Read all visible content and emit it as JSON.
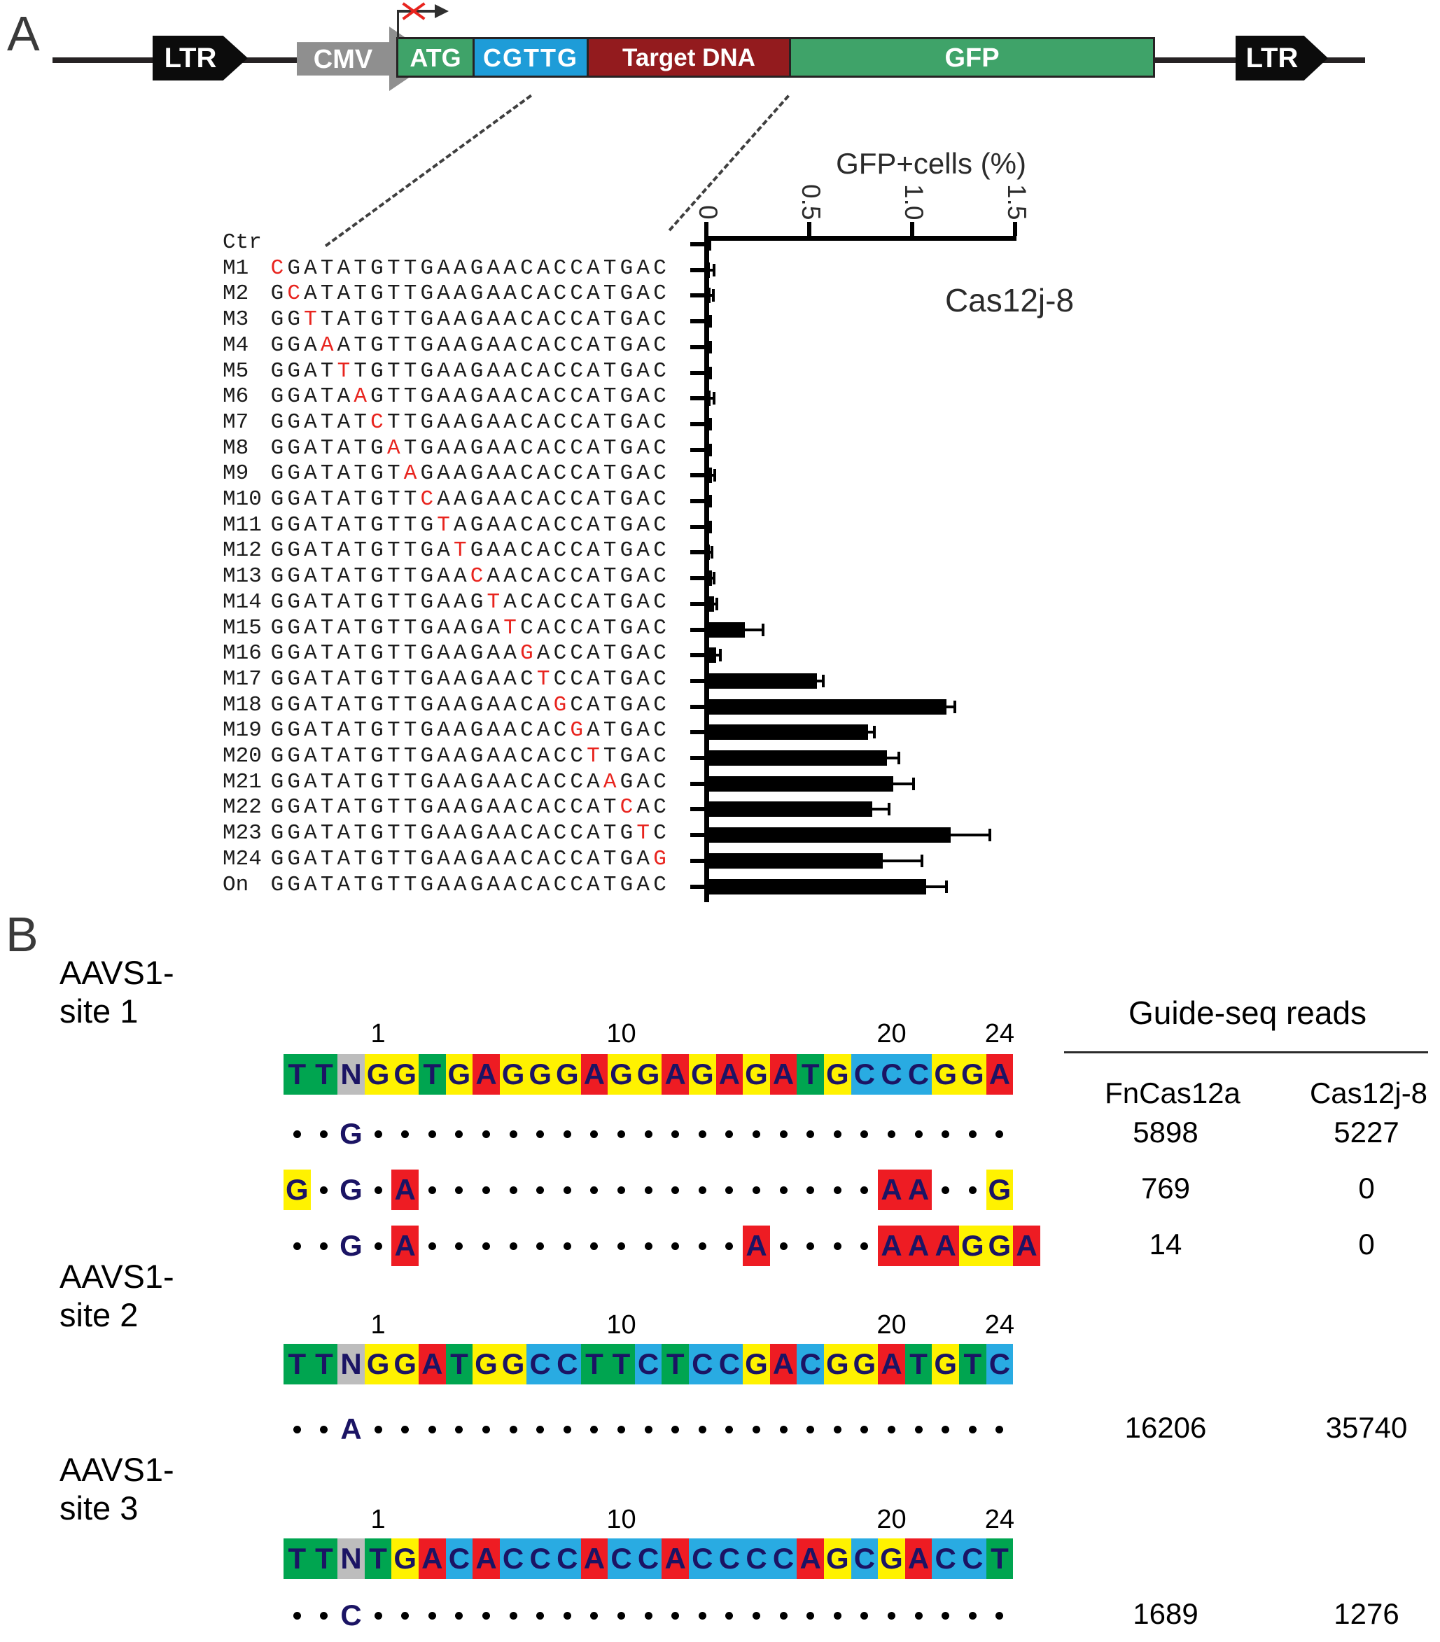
{
  "panel_a": {
    "label": "A",
    "construct": {
      "ltr_left": "LTR",
      "cmv": "CMV",
      "atg": "ATG",
      "linker": "CGTTG",
      "target_dna": "Target DNA",
      "gfp": "GFP",
      "ltr_right": "LTR"
    },
    "chart_data": {
      "type": "bar",
      "orientation": "horizontal",
      "title": "GFP+cells (%)",
      "annotation": "Cas12j-8",
      "x_ticks": [
        "0",
        "0.5",
        "1.0",
        "1.5"
      ],
      "x_tick_values": [
        0,
        0.5,
        1.0,
        1.5
      ],
      "xlim": [
        0,
        1.5
      ],
      "grid": false,
      "bar_color": "#000000",
      "rows": [
        {
          "label": "Ctr",
          "seq": "",
          "red_pos": 0,
          "value": 0.012,
          "error": 0.008
        },
        {
          "label": "M1",
          "seq": "CGATATGTTGAAGAACACCATGAC",
          "red_pos": 1,
          "value": 0.02,
          "error": 0.02
        },
        {
          "label": "M2",
          "seq": "GCATATGTTGAAGAACACCATGAC",
          "red_pos": 2,
          "value": 0.025,
          "error": 0.012
        },
        {
          "label": "M3",
          "seq": "GGTTATGTTGAAGAACACCATGAC",
          "red_pos": 3,
          "value": 0.015,
          "error": 0.008
        },
        {
          "label": "M4",
          "seq": "GGAAATGTTGAAGAACACCATGAC",
          "red_pos": 4,
          "value": 0.015,
          "error": 0.008
        },
        {
          "label": "M5",
          "seq": "GGATTTGTTGAAGAACACCATGAC",
          "red_pos": 5,
          "value": 0.015,
          "error": 0.01
        },
        {
          "label": "M6",
          "seq": "GGATAAGTTGAAGAACACCATGAC",
          "red_pos": 6,
          "value": 0.025,
          "error": 0.015
        },
        {
          "label": "M7",
          "seq": "GGATATCTTGAAGAACACCATGAC",
          "red_pos": 7,
          "value": 0.015,
          "error": 0.008
        },
        {
          "label": "M8",
          "seq": "GGATATGATGAAGAACACCATGAC",
          "red_pos": 8,
          "value": 0.015,
          "error": 0.008
        },
        {
          "label": "M9",
          "seq": "GGATATGTAGAAGAACACCATGAC",
          "red_pos": 9,
          "value": 0.03,
          "error": 0.015
        },
        {
          "label": "M10",
          "seq": "GGATATGTTCAAGAACACCATGAC",
          "red_pos": 10,
          "value": 0.015,
          "error": 0.008
        },
        {
          "label": "M11",
          "seq": "GGATATGTTGTAGAACACCATGAC",
          "red_pos": 11,
          "value": 0.015,
          "error": 0.008
        },
        {
          "label": "M12",
          "seq": "GGATATGTTGATGAACACCATGAC",
          "red_pos": 12,
          "value": 0.02,
          "error": 0.01
        },
        {
          "label": "M13",
          "seq": "GGATATGTTGAACAACACCATGAC",
          "red_pos": 13,
          "value": 0.03,
          "error": 0.012
        },
        {
          "label": "M14",
          "seq": "GGATATGTTGAAGTACACCATGAC",
          "red_pos": 14,
          "value": 0.04,
          "error": 0.015
        },
        {
          "label": "M15",
          "seq": "GGATATGTTGAAGATCACCATGAC",
          "red_pos": 15,
          "value": 0.19,
          "error": 0.09
        },
        {
          "label": "M16",
          "seq": "GGATATGTTGAAGAAGACCATGAC",
          "red_pos": 16,
          "value": 0.05,
          "error": 0.02
        },
        {
          "label": "M17",
          "seq": "GGATATGTTGAAGAACTCCATGAC",
          "red_pos": 17,
          "value": 0.54,
          "error": 0.03
        },
        {
          "label": "M18",
          "seq": "GGATATGTTGAAGAACAGCATGAC",
          "red_pos": 18,
          "value": 1.17,
          "error": 0.04
        },
        {
          "label": "M19",
          "seq": "GGATATGTTGAAGAACACGATGAC",
          "red_pos": 19,
          "value": 0.79,
          "error": 0.03
        },
        {
          "label": "M20",
          "seq": "GGATATGTTGAAGAACACCTTGAC",
          "red_pos": 20,
          "value": 0.88,
          "error": 0.06
        },
        {
          "label": "M21",
          "seq": "GGATATGTTGAAGAACACCAAGAC",
          "red_pos": 21,
          "value": 0.91,
          "error": 0.1
        },
        {
          "label": "M22",
          "seq": "GGATATGTTGAAGAACACCATCAC",
          "red_pos": 22,
          "value": 0.81,
          "error": 0.08
        },
        {
          "label": "M23",
          "seq": "GGATATGTTGAAGAACACCATGTC",
          "red_pos": 23,
          "value": 1.19,
          "error": 0.19
        },
        {
          "label": "M24",
          "seq": "GGATATGTTGAAGAACACCATGAG",
          "red_pos": 24,
          "value": 0.86,
          "error": 0.19
        },
        {
          "label": "On",
          "seq": "GGATATGTTGAAGAACACCATGAC",
          "red_pos": 0,
          "value": 1.07,
          "error": 0.1
        }
      ]
    }
  },
  "panel_b": {
    "label": "B",
    "reads_header": "Guide-seq reads",
    "columns": [
      "FnCas12a",
      "Cas12j-8"
    ],
    "base_colors": {
      "A": "#ee1c23",
      "T": "#00a550",
      "G": "#fff200",
      "C": "#29abe2",
      "N": "#bdbdbd"
    },
    "letter_color": "#1b1464",
    "position_labels": [
      {
        "text": "1",
        "cell": 4
      },
      {
        "text": "10",
        "cell": 13
      },
      {
        "text": "20",
        "cell": 23
      },
      {
        "text": "24",
        "cell": 27
      }
    ],
    "sites": [
      {
        "name": "AAVS1- site 1",
        "target": "TTNGGTGAGGGAGGAGAGATGCCCGGA",
        "offtargets": [
          {
            "pattern": "..g........................",
            "reads": [
              "5898",
              "5227"
            ]
          },
          {
            "pattern": "G.g.A.................AA..G",
            "reads": [
              "769",
              "0"
            ]
          },
          {
            "pattern": "..g.A............A....AAAGGA",
            "reads": [
              "14",
              "0"
            ]
          }
        ]
      },
      {
        "name": "AAVS1- site 2",
        "target": "TTNGGATGGCCTTCTCCGACGGATGTC",
        "offtargets": [
          {
            "pattern": "..a........................",
            "reads": [
              "16206",
              "35740"
            ]
          }
        ]
      },
      {
        "name": "AAVS1- site 3",
        "target": "TTNTGACACCCACCACCCCAGCGACCT",
        "offtargets": [
          {
            "pattern": "..c........................",
            "reads": [
              "1689",
              "1276"
            ]
          }
        ]
      }
    ]
  }
}
